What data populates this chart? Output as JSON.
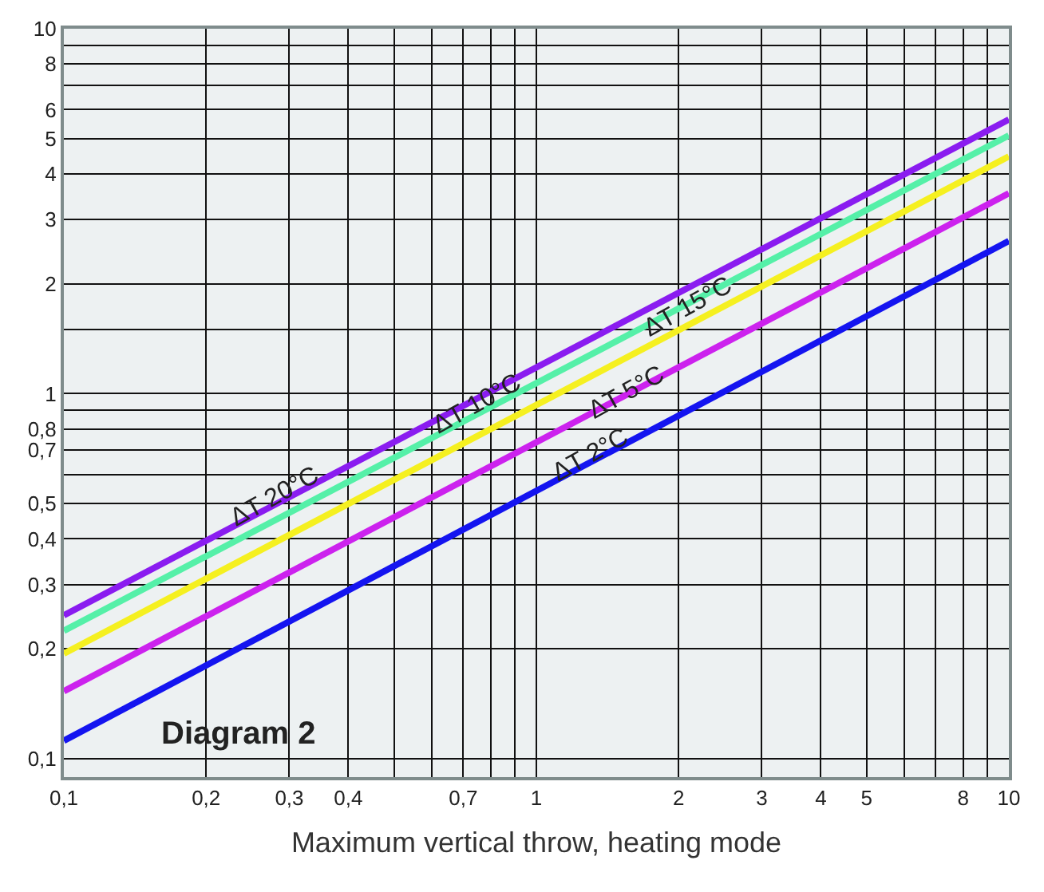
{
  "chart_data": {
    "type": "line",
    "xlabel": "Maximum vertical throw, heating mode",
    "log": "xy",
    "grid": true,
    "x": [
      0.1,
      10
    ],
    "series": [
      {
        "color": "#8a1cf0",
        "values": [
          0.247,
          5.64
        ]
      },
      {
        "color": "#55f0a8",
        "values": [
          0.224,
          5.1
        ]
      },
      {
        "color": "#f5f020",
        "values": [
          0.194,
          4.47
        ]
      },
      {
        "color": "#cc22ee",
        "values": [
          0.153,
          3.54
        ]
      },
      {
        "color": "#1414f0",
        "values": [
          0.112,
          2.62
        ]
      }
    ],
    "xlim": [
      0.1,
      10
    ],
    "ylim": [
      0.089,
      10
    ],
    "xticks": [
      {
        "value": 0.1,
        "label": "0,1"
      },
      {
        "value": 0.2,
        "label": "0,2"
      },
      {
        "value": 0.3,
        "label": "0,3"
      },
      {
        "value": 0.4,
        "label": "0,4"
      },
      {
        "value": 0.5,
        "label": null
      },
      {
        "value": 0.6,
        "label": null
      },
      {
        "value": 0.7,
        "label": "0,7"
      },
      {
        "value": 0.8,
        "label": null
      },
      {
        "value": 0.9,
        "label": null
      },
      1,
      2,
      3,
      4,
      5,
      {
        "value": 6,
        "label": null
      },
      {
        "value": 7,
        "label": null
      },
      8,
      {
        "value": 9,
        "label": null
      },
      10
    ],
    "yticks": [
      {
        "value": 0.1,
        "label": "0,1"
      },
      {
        "value": 0.2,
        "label": "0,2"
      },
      {
        "value": 0.3,
        "label": "0,3"
      },
      {
        "value": 0.4,
        "label": "0,4"
      },
      {
        "value": 0.5,
        "label": "0,5"
      },
      {
        "value": 0.6,
        "label": null
      },
      {
        "value": 0.7,
        "label": "0,7"
      },
      {
        "value": 0.8,
        "label": "0,8"
      },
      {
        "value": 0.9,
        "label": null
      },
      1,
      {
        "value": 1.5,
        "label": null
      },
      2,
      3,
      4,
      5,
      6,
      {
        "value": 7,
        "label": null
      },
      8,
      {
        "value": 9,
        "label": null
      },
      10
    ],
    "annotations": [
      {
        "text": "ΔT 20°C",
        "x": 0.28,
        "y": 0.52
      },
      {
        "text": "ΔT 10°C",
        "x": 0.75,
        "y": 0.93
      },
      {
        "text": "ΔT 15°C",
        "x": 2.1,
        "y": 1.72
      },
      {
        "text": "ΔT 5°C",
        "x": 1.55,
        "y": 1.0
      },
      {
        "text": "ΔT 2°C",
        "x": 1.3,
        "y": 0.68
      },
      "Diagram 2"
    ]
  }
}
